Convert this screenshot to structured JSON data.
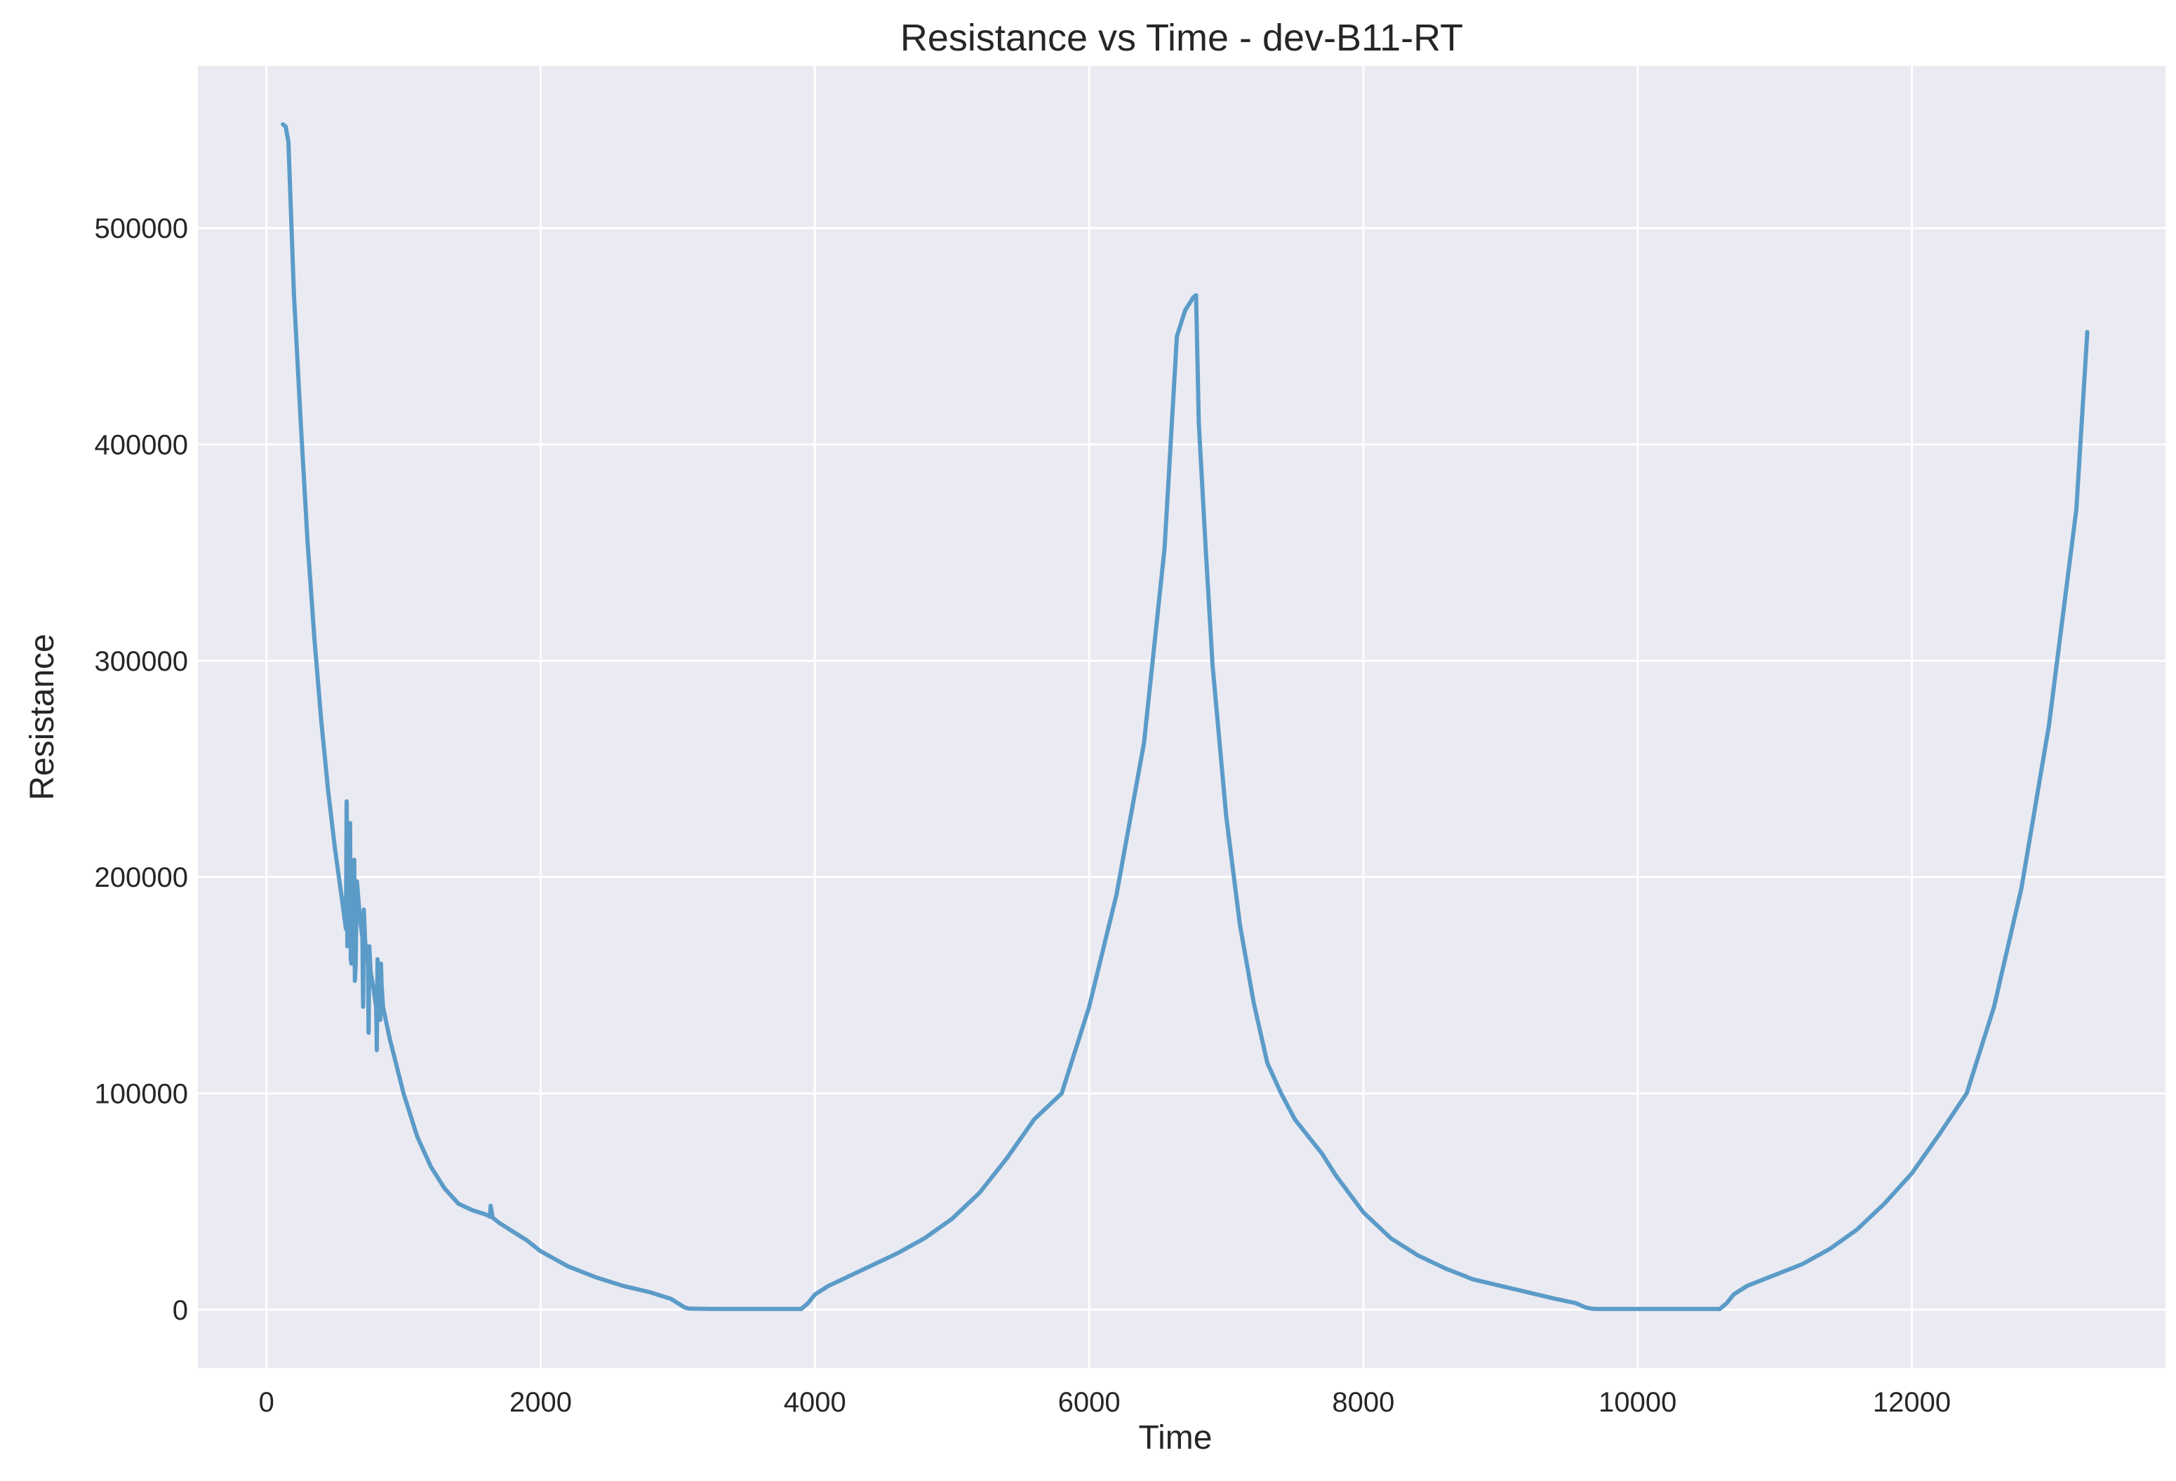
{
  "chart_data": {
    "type": "line",
    "title": "Resistance vs Time - dev-B11-RT",
    "xlabel": "Time",
    "ylabel": "Resistance",
    "xlim": [
      -500,
      13850
    ],
    "ylim": [
      -27000,
      575000
    ],
    "xticks": [
      0,
      2000,
      4000,
      6000,
      8000,
      10000,
      12000
    ],
    "yticks": [
      0,
      100000,
      200000,
      300000,
      400000,
      500000
    ],
    "xtick_labels": [
      "0",
      "2000",
      "4000",
      "6000",
      "8000",
      "10000",
      "12000"
    ],
    "ytick_labels": [
      "0",
      "100000",
      "200000",
      "300000",
      "400000",
      "500000"
    ],
    "grid": true,
    "legend": "none",
    "colors": {
      "plot_bg": "#eaeaf2",
      "grid": "#ffffff",
      "line": "#5b9bc8",
      "text": "#262626"
    },
    "series": [
      {
        "color": "#5b9bc8",
        "x": [
          120,
          140,
          160,
          200,
          250,
          300,
          350,
          400,
          450,
          500,
          550,
          580,
          585,
          590,
          600,
          610,
          615,
          620,
          640,
          645,
          650,
          660,
          680,
          700,
          705,
          710,
          720,
          740,
          745,
          750,
          760,
          780,
          800,
          805,
          810,
          820,
          830,
          835,
          840,
          850,
          900,
          1000,
          1100,
          1200,
          1300,
          1400,
          1500,
          1600,
          1630,
          1635,
          1650,
          1700,
          1800,
          1900,
          2000,
          2200,
          2400,
          2600,
          2800,
          2950,
          3000,
          3050,
          3080,
          3300,
          3600,
          3900,
          3950,
          4000,
          4100,
          4200,
          4400,
          4600,
          4800,
          5000,
          5200,
          5400,
          5600,
          5800,
          6000,
          6200,
          6400,
          6550,
          6640,
          6700,
          6760,
          6780,
          6800,
          6850,
          6900,
          7000,
          7100,
          7200,
          7300,
          7400,
          7500,
          7600,
          7700,
          7800,
          8000,
          8200,
          8400,
          8600,
          8800,
          9000,
          9200,
          9400,
          9550,
          9620,
          9660,
          9700,
          10000,
          10300,
          10600,
          10650,
          10700,
          10800,
          11000,
          11200,
          11400,
          11600,
          11800,
          12000,
          12200,
          12400,
          12600,
          12800,
          13000,
          13200,
          13280
        ],
        "y": [
          548000,
          547000,
          540000,
          470000,
          410000,
          355000,
          310000,
          272000,
          240000,
          213000,
          190000,
          176000,
          235000,
          168000,
          174000,
          225000,
          162000,
          160000,
          208000,
          152000,
          158000,
          198000,
          182000,
          172000,
          140000,
          185000,
          170000,
          160000,
          128000,
          168000,
          156000,
          149000,
          140000,
          120000,
          162000,
          145000,
          134000,
          160000,
          150000,
          140000,
          125000,
          100000,
          80000,
          66000,
          56000,
          49000,
          46000,
          44000,
          43000,
          48000,
          42500,
          40000,
          36000,
          32000,
          27000,
          20000,
          15000,
          11000,
          8000,
          5000,
          3000,
          1000,
          500,
          300,
          300,
          300,
          3000,
          7000,
          11000,
          14000,
          20000,
          26000,
          33000,
          42000,
          54000,
          70000,
          88000,
          100000,
          140000,
          192000,
          262000,
          352000,
          450000,
          462000,
          468000,
          469000,
          410000,
          352000,
          298000,
          228000,
          178000,
          142000,
          114000,
          100000,
          88000,
          80000,
          72000,
          62000,
          45000,
          33000,
          25000,
          19000,
          14000,
          11000,
          8000,
          5000,
          3000,
          1000,
          500,
          300,
          300,
          300,
          300,
          3000,
          7000,
          11000,
          16000,
          21000,
          28000,
          37000,
          49000,
          63000,
          81000,
          100000,
          140000,
          195000,
          270000,
          370000,
          452000
        ]
      }
    ]
  }
}
